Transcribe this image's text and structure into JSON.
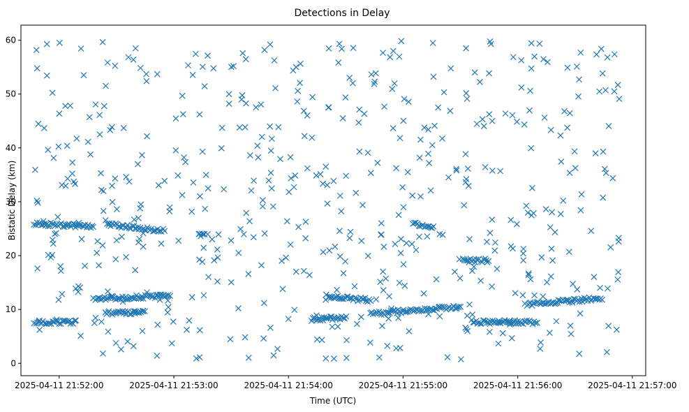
{
  "chart_data": {
    "type": "scatter",
    "title": "Detections in Delay",
    "xlabel": "Time (UTC)",
    "ylabel": "Bistatic Delay (km)",
    "x_ticks": [
      "2025-04-11 21:52:00",
      "2025-04-11 21:53:00",
      "2025-04-11 21:54:00",
      "2025-04-11 21:55:00",
      "2025-04-11 21:56:00",
      "2025-04-11 21:57:00"
    ],
    "x_range": [
      "2025-04-11 21:51:40",
      "2025-04-11 21:57:07"
    ],
    "y_ticks": [
      0,
      10,
      20,
      30,
      40,
      50,
      60
    ],
    "ylim": [
      -2.3,
      62.8
    ],
    "grid": false,
    "marker": "x",
    "color": "#1f77b4",
    "series": [
      {
        "tracks": [
          {
            "x": [
              "2025-04-11 21:51:47",
              "2025-04-11 21:52:09"
            ],
            "y": [
              7.6,
              7.7
            ]
          },
          {
            "x": [
              "2025-04-11 21:51:47",
              "2025-04-11 21:52:18"
            ],
            "y": [
              25.9,
              25.4
            ]
          },
          {
            "x": [
              "2025-04-11 21:52:18",
              "2025-04-11 21:52:58"
            ],
            "y": [
              12.0,
              12.5
            ]
          },
          {
            "x": [
              "2025-04-11 21:52:25",
              "2025-04-11 21:52:55"
            ],
            "y": [
              25.8,
              24.6
            ]
          },
          {
            "x": [
              "2025-04-11 21:52:24",
              "2025-04-11 21:52:45"
            ],
            "y": [
              9.3,
              9.5
            ]
          },
          {
            "x": [
              "2025-04-11 21:53:13",
              "2025-04-11 21:53:16"
            ],
            "y": [
              23.8,
              23.8
            ]
          },
          {
            "x": [
              "2025-04-11 21:54:12",
              "2025-04-11 21:54:30"
            ],
            "y": [
              8.2,
              8.5
            ]
          },
          {
            "x": [
              "2025-04-11 21:54:20",
              "2025-04-11 21:54:43"
            ],
            "y": [
              12.4,
              11.7
            ]
          },
          {
            "x": [
              "2025-04-11 21:54:43",
              "2025-04-11 21:55:30"
            ],
            "y": [
              9.2,
              10.5
            ]
          },
          {
            "x": [
              "2025-04-11 21:55:05",
              "2025-04-11 21:55:16"
            ],
            "y": [
              25.9,
              25.4
            ]
          },
          {
            "x": [
              "2025-04-11 21:55:31",
              "2025-04-11 21:55:45"
            ],
            "y": [
              19.1,
              19.1
            ]
          },
          {
            "x": [
              "2025-04-11 21:55:36",
              "2025-04-11 21:56:10"
            ],
            "y": [
              7.7,
              7.6
            ]
          },
          {
            "x": [
              "2025-04-11 21:56:04",
              "2025-04-11 21:56:44"
            ],
            "y": [
              10.9,
              12.1
            ]
          }
        ]
      }
    ]
  }
}
